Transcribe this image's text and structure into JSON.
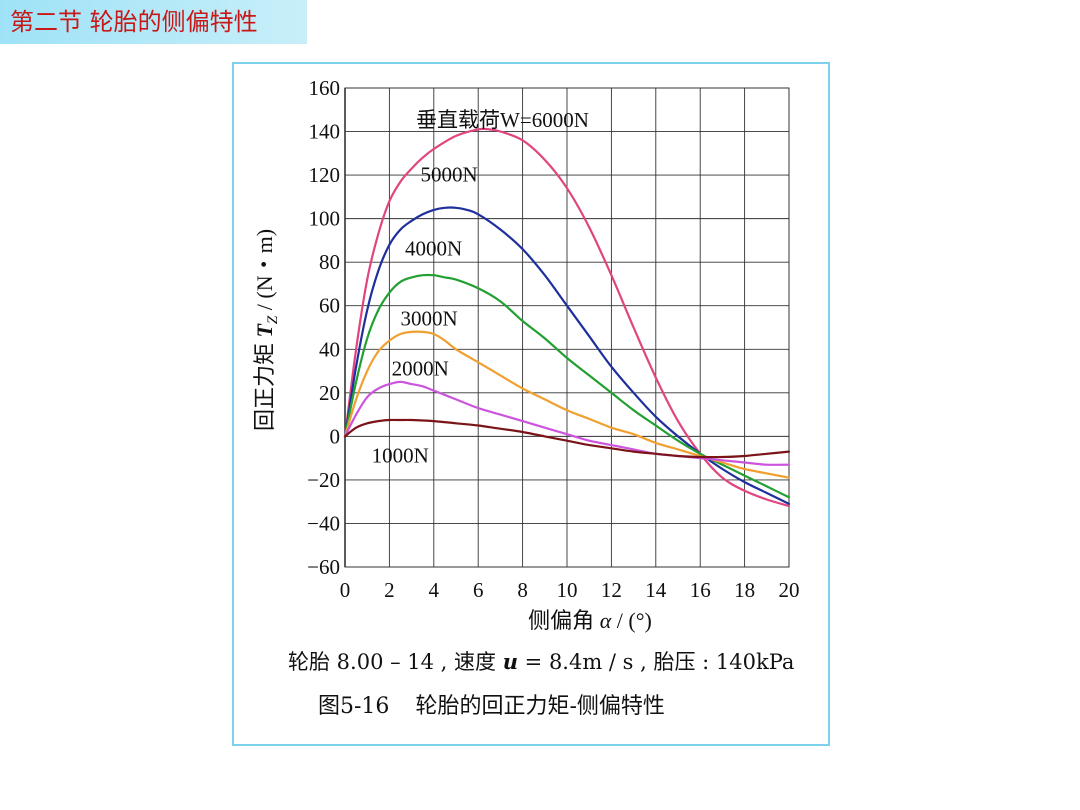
{
  "slide": {
    "section_title": "第二节  轮胎的侧偏特性"
  },
  "chart_data": {
    "type": "line",
    "ylabel": "回正力矩 T_Z / (N・m)",
    "ylabel_parts": {
      "prefix": "回正力矩 ",
      "sym": "T",
      "sub": "Z",
      "suffix": " / (N・m)"
    },
    "xlabel": "侧偏角 α / (°)",
    "xlabel_parts": {
      "prefix": "侧偏角 ",
      "sym": "α",
      "suffix": " / (°)"
    },
    "xlim": [
      0,
      20
    ],
    "ylim": [
      -60,
      160
    ],
    "x_ticks": [
      0,
      2,
      4,
      6,
      8,
      10,
      12,
      14,
      16,
      18,
      20
    ],
    "x_tick_labels": [
      "0",
      "2",
      "4",
      "6",
      "8",
      "10",
      "12",
      "14",
      "16",
      "18",
      "20"
    ],
    "y_ticks": [
      160,
      140,
      120,
      100,
      80,
      60,
      40,
      20,
      0,
      -20,
      -40,
      -60
    ],
    "y_tick_labels": [
      "160",
      "140",
      "120",
      "100",
      "80",
      "60",
      "40",
      "20",
      "0",
      "−20",
      "−40",
      "−60"
    ],
    "grid": true,
    "series": [
      {
        "name": "垂直载荷W=6000N",
        "color": "#e0457f",
        "label_pos": [
          3.2,
          142
        ],
        "x": [
          0,
          0.5,
          1,
          1.5,
          2,
          2.5,
          3,
          3.5,
          4,
          5,
          6,
          6.5,
          7,
          8,
          9,
          10,
          11,
          12,
          13,
          14,
          15,
          16,
          17,
          18,
          19,
          20
        ],
        "y": [
          0,
          40,
          72,
          93,
          108,
          117,
          123,
          128,
          132,
          138,
          141,
          141,
          140,
          136,
          127,
          114,
          96,
          74,
          50,
          27,
          7,
          -8,
          -19,
          -25,
          -29,
          -32
        ]
      },
      {
        "name": "5000N",
        "color": "#1f2f9c",
        "label_pos": [
          3.4,
          117
        ],
        "x": [
          0,
          0.5,
          1,
          1.5,
          2,
          2.5,
          3,
          3.5,
          4,
          4.5,
          5,
          5.5,
          6,
          7,
          8,
          9,
          10,
          11,
          12,
          13,
          14,
          15,
          16,
          17,
          18,
          19,
          20
        ],
        "y": [
          0,
          32,
          58,
          76,
          88,
          95,
          99,
          102,
          104,
          105,
          105,
          104,
          102,
          95,
          86,
          74,
          60,
          46,
          32,
          20,
          9,
          0,
          -8,
          -15,
          -21,
          -26,
          -31
        ]
      },
      {
        "name": "4000N",
        "color": "#22a032",
        "label_pos": [
          2.7,
          83
        ],
        "x": [
          0,
          0.5,
          1,
          1.5,
          2,
          2.5,
          3,
          3.5,
          4,
          4.5,
          5,
          6,
          7,
          8,
          9,
          10,
          11,
          12,
          13,
          14,
          15,
          16,
          17,
          18,
          19,
          20
        ],
        "y": [
          0,
          25,
          45,
          58,
          66,
          71,
          73,
          74,
          74,
          73,
          72,
          68,
          62,
          53,
          45,
          36,
          28,
          20,
          12,
          5,
          -2,
          -8,
          -13,
          -18,
          -23,
          -28
        ]
      },
      {
        "name": "3000N",
        "color": "#f0a030",
        "label_pos": [
          2.5,
          51
        ],
        "x": [
          0,
          0.5,
          1,
          1.5,
          2,
          2.5,
          3,
          3.5,
          4,
          4.5,
          5,
          6,
          7,
          8,
          9,
          10,
          11,
          12,
          13,
          14,
          15,
          16,
          17,
          18,
          19,
          20
        ],
        "y": [
          0,
          17,
          30,
          39,
          44,
          47,
          48,
          48,
          47,
          44,
          40,
          34,
          28,
          22,
          17,
          12,
          8,
          4,
          1,
          -3,
          -6,
          -9,
          -12,
          -15,
          -17,
          -19
        ]
      },
      {
        "name": "2000N",
        "color": "#cc55dd",
        "label_pos": [
          2.1,
          28
        ],
        "x": [
          0,
          0.5,
          1,
          1.5,
          2,
          2.5,
          3,
          3.5,
          4,
          5,
          6,
          7,
          8,
          9,
          10,
          11,
          12,
          13,
          14,
          15,
          16,
          17,
          18,
          19,
          20
        ],
        "y": [
          0,
          10,
          18,
          22,
          24,
          25,
          24,
          23,
          21,
          17,
          13,
          10,
          7,
          4,
          1,
          -2,
          -4,
          -6,
          -8,
          -9,
          -10,
          -11,
          -12,
          -13,
          -13
        ]
      },
      {
        "name": "1000N",
        "color": "#7a1418",
        "label_pos": [
          1.2,
          -12
        ],
        "x": [
          0,
          0.5,
          1,
          1.5,
          2,
          2.5,
          3,
          4,
          5,
          6,
          7,
          8,
          9,
          10,
          11,
          12,
          13,
          14,
          15,
          16,
          17,
          18,
          19,
          20
        ],
        "y": [
          0,
          4,
          6,
          7,
          7.5,
          7.5,
          7.5,
          7,
          6,
          5,
          3.5,
          2,
          0,
          -2,
          -4,
          -5.5,
          -7,
          -8,
          -9,
          -9.5,
          -9.5,
          -9,
          -8,
          -7
        ]
      }
    ]
  },
  "caption": {
    "line1_prefix": "轮胎 8.00 – 14 , 速度 ",
    "line1_sym": "u",
    "line1_suffix": " = 8.4m / s , 胎压 : 140kPa",
    "fig_no": "图5-16",
    "fig_title": "轮胎的回正力矩-侧偏特性"
  }
}
